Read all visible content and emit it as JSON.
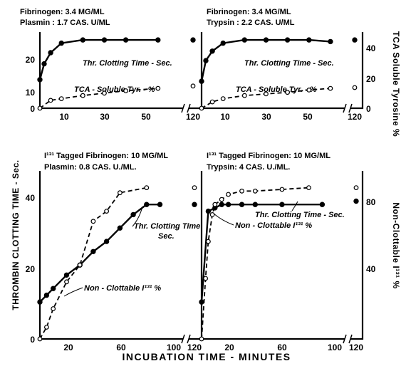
{
  "figure": {
    "y_axis_left": "THROMBIN  CLOTTING  TIME - Sec.",
    "y_axis_right_top": "TCA Soluble Tyrosine %",
    "y_axis_right_bottom": "Non-Clottable I¹³¹ %",
    "x_axis": "INCUBATION  TIME - MINUTES"
  },
  "headers": {
    "top_left": [
      "Fibrinogen: 3.4 MG/ML",
      "Plasmin    : 1.7 CAS. U/ML"
    ],
    "top_right": [
      "Fibrinogen: 3.4 MG/ML",
      "Trypsin      : 2.2 CAS. U/ML"
    ],
    "bottom_left": [
      "I¹³¹ Tagged Fibrinogen: 10 MG/ML",
      "Plasmin: 0.8 CAS. U./ML."
    ],
    "bottom_right": [
      "I¹³¹ Tagged Fibrinogen: 10 MG/ML",
      "Trypsin:  4 CAS. U./ML."
    ]
  },
  "curve_labels": {
    "top_left_solid": "Thr. Clotting Time - Sec.",
    "top_left_dashed": "TCA - Soluble Tyr. - %",
    "top_right_solid": "Thr. Clotting Time - Sec.",
    "top_right_dashed": "TCA - Soluble Tyr. - %",
    "bottom_left_solid": [
      "Thr. Clotting Time",
      "Sec."
    ],
    "bottom_left_dashed": "Non - Clottable I¹³¹ %",
    "bottom_right_solid": "Thr. Clotting Time - Sec.",
    "bottom_right_dashed": "Non - Clottable I¹³¹ %"
  },
  "ticks": {
    "top_left_y": [
      "0",
      "10",
      "20"
    ],
    "top_right_y": [
      "0",
      "20",
      "40"
    ],
    "top_x": [
      "10",
      "30",
      "50",
      "120"
    ],
    "bottom_left_y": [
      "0",
      "20",
      "40"
    ],
    "bottom_right_y": [
      "40",
      "80"
    ],
    "bottom_x": [
      "20",
      "60",
      "100",
      "120"
    ]
  },
  "chart_data": [
    {
      "panel": "top-left",
      "type": "line",
      "x_unit": "minutes",
      "xlim": [
        0,
        65
      ],
      "y_left_lim": [
        0,
        24
      ],
      "y_right_lim": [
        0,
        48
      ],
      "series": [
        {
          "name": "Thr. Clotting Time - Sec.",
          "axis": "left",
          "style": "solid-filled",
          "x": [
            0,
            2,
            5,
            10,
            20,
            30,
            40,
            55,
            120
          ],
          "y": [
            9,
            14,
            17.5,
            20.5,
            21.5,
            21.5,
            21.5,
            21.5,
            21.5
          ]
        },
        {
          "name": "TCA - Soluble Tyr. - %",
          "axis": "right",
          "style": "dashed-open",
          "x": [
            0,
            5,
            10,
            20,
            30,
            40,
            55,
            120
          ],
          "y": [
            0,
            5,
            6,
            8,
            9.5,
            11,
            12.5,
            14
          ]
        }
      ]
    },
    {
      "panel": "top-right",
      "type": "line",
      "x_unit": "minutes",
      "xlim": [
        0,
        65
      ],
      "y_left_lim": [
        0,
        24
      ],
      "y_right_lim": [
        0,
        48
      ],
      "series": [
        {
          "name": "Thr. Clotting Time - Sec.",
          "axis": "right",
          "style": "solid-filled",
          "x": [
            0,
            2,
            5,
            10,
            20,
            30,
            40,
            50,
            60,
            120
          ],
          "y": [
            17,
            30,
            36,
            41,
            43,
            43,
            43,
            43,
            42,
            43
          ]
        },
        {
          "name": "TCA - Soluble Tyr. - %",
          "axis": "right",
          "style": "dashed-open",
          "x": [
            0,
            5,
            10,
            20,
            30,
            40,
            50,
            60,
            120
          ],
          "y": [
            0,
            4,
            6,
            8,
            9,
            10,
            11.5,
            12.5,
            13
          ]
        }
      ]
    },
    {
      "panel": "bottom-left",
      "type": "line",
      "x_unit": "minutes",
      "xlim": [
        0,
        110
      ],
      "y_left_lim": [
        0,
        50
      ],
      "y_right_lim": [
        0,
        100
      ],
      "series": [
        {
          "name": "Thr. Clotting Time",
          "axis": "left",
          "style": "solid-filled",
          "x": [
            0,
            5,
            10,
            20,
            30,
            40,
            50,
            60,
            70,
            80,
            90,
            120
          ],
          "y": [
            11,
            13,
            15,
            19,
            22,
            26,
            29,
            33,
            37,
            40,
            40,
            40
          ]
        },
        {
          "name": "Non - Clottable I¹³¹ %",
          "axis": "right",
          "style": "dashed-open",
          "x": [
            0,
            5,
            10,
            20,
            30,
            40,
            50,
            60,
            80,
            120
          ],
          "y": [
            0,
            7,
            18,
            34,
            44,
            70,
            76,
            87,
            90,
            90
          ]
        }
      ]
    },
    {
      "panel": "bottom-right",
      "type": "line",
      "x_unit": "minutes",
      "xlim": [
        0,
        110
      ],
      "y_left_lim": [
        0,
        50
      ],
      "y_right_lim": [
        0,
        100
      ],
      "series": [
        {
          "name": "Thr. Clotting Time - Sec.",
          "axis": "left",
          "style": "solid-filled",
          "x": [
            0,
            5,
            10,
            15,
            20,
            30,
            40,
            60,
            90,
            120
          ],
          "y": [
            11,
            38,
            39,
            40,
            40,
            40,
            40,
            40,
            40,
            41
          ]
        },
        {
          "name": "Non - Clottable I¹³¹ %",
          "axis": "right",
          "style": "dashed-open",
          "x": [
            0,
            3,
            5,
            8,
            10,
            15,
            20,
            30,
            40,
            60,
            80,
            120
          ],
          "y": [
            0,
            36,
            58,
            74,
            80,
            83,
            86,
            88,
            88,
            89,
            90,
            90
          ]
        }
      ]
    }
  ]
}
